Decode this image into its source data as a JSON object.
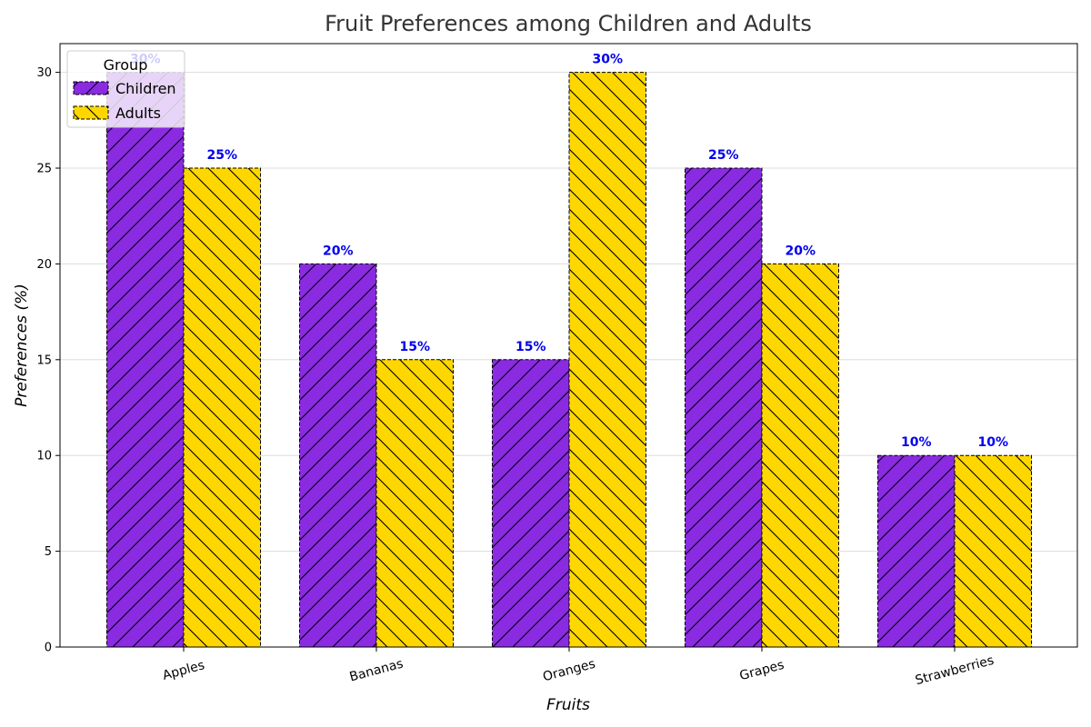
{
  "chart_data": {
    "type": "bar",
    "title": "Fruit Preferences among Children and Adults",
    "xlabel": "Fruits",
    "ylabel": "Preferences (%)",
    "categories": [
      "Apples",
      "Bananas",
      "Oranges",
      "Grapes",
      "Strawberries"
    ],
    "series": [
      {
        "name": "Children",
        "values": [
          30,
          20,
          15,
          25,
          10
        ],
        "color": "#8a2be2",
        "hatch": "forward-slash"
      },
      {
        "name": "Adults",
        "values": [
          25,
          15,
          30,
          20,
          10
        ],
        "color": "#ffd700",
        "hatch": "back-slash"
      }
    ],
    "data_labels": {
      "Children": [
        "30%",
        "20%",
        "15%",
        "25%",
        "10%"
      ],
      "Adults": [
        "25%",
        "15%",
        "30%",
        "20%",
        "10%"
      ]
    },
    "ylim": [
      0,
      31.5
    ],
    "yticks": [
      0,
      5,
      10,
      15,
      20,
      25,
      30
    ],
    "ytick_labels": [
      "0",
      "5",
      "10",
      "15",
      "20",
      "25",
      "30"
    ],
    "grid": "horizontal",
    "legend": {
      "title": "Group",
      "placement": "top-left"
    },
    "label_color": "#0000ee"
  }
}
